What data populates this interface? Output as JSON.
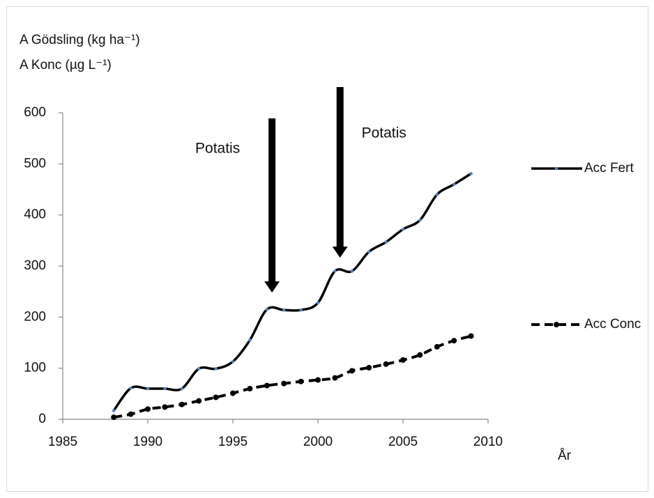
{
  "chart_data": {
    "type": "line",
    "y_label_lines": [
      "A Gödsling (kg ha⁻¹)",
      "A Konc (µg L⁻¹)"
    ],
    "x_label": "År",
    "x": [
      1988,
      1989,
      1990,
      1991,
      1992,
      1993,
      1994,
      1995,
      1996,
      1997,
      1998,
      1999,
      2000,
      2001,
      2002,
      2003,
      2004,
      2005,
      2006,
      2007,
      2008,
      2009
    ],
    "series": [
      {
        "name": "Acc Fert",
        "color": "#000000",
        "style": "solid",
        "values": [
          17,
          61,
          60,
          60,
          60,
          99,
          99,
          113,
          155,
          215,
          214,
          214,
          228,
          290,
          290,
          328,
          347,
          372,
          390,
          440,
          460,
          481
        ]
      },
      {
        "name": "Acc Conc",
        "color": "#000000",
        "style": "dashed",
        "values": [
          4,
          10,
          20,
          24,
          29,
          36,
          43,
          51,
          60,
          66,
          70,
          74,
          77,
          81,
          95,
          101,
          108,
          116,
          126,
          142,
          154,
          163
        ]
      }
    ],
    "xlim": [
      1985,
      2010
    ],
    "xticks": [
      1985,
      1990,
      1995,
      2000,
      2005,
      2010
    ],
    "ylim": [
      0,
      600
    ],
    "yticks": [
      0,
      100,
      200,
      300,
      400,
      500,
      600
    ],
    "annotations": [
      {
        "text": "Potatis",
        "x": 1997.3
      },
      {
        "text": "Potatis",
        "x": 2001.3
      }
    ],
    "legend": "right"
  }
}
